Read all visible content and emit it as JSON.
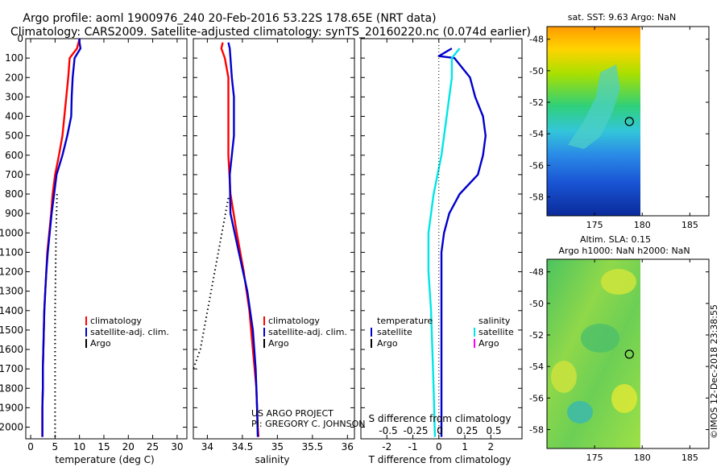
{
  "titles": {
    "line1": "Argo profile: aoml 1900976_240 20-Feb-2016 53.22S 178.65E (NRT data)",
    "line2": "Climatology: CARS2009. Satellite-adjusted climatology: synTS_20160220.nc (0.074d earlier)"
  },
  "credits": {
    "project": "US ARGO PROJECT",
    "pi": "PI: GREGORY C. JOHNSON",
    "imos": "©IMOS 12-Dec-2018 23:38:55"
  },
  "colors": {
    "climatology": "#ff0000",
    "satellite": "#0000cc",
    "argo": "#000000",
    "salinity_sat": "#00e5e5",
    "salinity_argo": "#ff00ff"
  },
  "chart_data": [
    {
      "type": "line",
      "panel": "temperature",
      "xlabel": "temperature (deg C)",
      "xlim": [
        -1,
        32
      ],
      "xticks": [
        0,
        5,
        10,
        15,
        20,
        25,
        30
      ],
      "ylim": [
        2060,
        0
      ],
      "yticks": [
        0,
        100,
        200,
        300,
        400,
        500,
        600,
        700,
        800,
        900,
        1000,
        1100,
        1200,
        1300,
        1400,
        1500,
        1600,
        1700,
        1800,
        1900,
        2000
      ],
      "y_inverted": true,
      "legend": {
        "placement": "lower-middle",
        "entries": [
          "climatology",
          "satellite-adj. clim.",
          "Argo"
        ]
      },
      "series": [
        {
          "name": "climatology",
          "color": "#ff0000",
          "points": [
            [
              10,
              0
            ],
            [
              9.8,
              20
            ],
            [
              9.5,
              50
            ],
            [
              8,
              100
            ],
            [
              7.7,
              200
            ],
            [
              7.3,
              300
            ],
            [
              6.9,
              400
            ],
            [
              6.5,
              500
            ],
            [
              5.8,
              600
            ],
            [
              5,
              700
            ],
            [
              4.5,
              800
            ],
            [
              4.2,
              900
            ],
            [
              3.8,
              1000
            ],
            [
              3.4,
              1100
            ],
            [
              3.2,
              1200
            ],
            [
              3,
              1300
            ],
            [
              2.8,
              1400
            ],
            [
              2.7,
              1500
            ],
            [
              2.6,
              1600
            ],
            [
              2.5,
              1700
            ],
            [
              2.5,
              1800
            ],
            [
              2.4,
              1900
            ],
            [
              2.4,
              2000
            ],
            [
              2.4,
              2050
            ]
          ]
        },
        {
          "name": "satellite-adj. clim.",
          "color": "#0000cc",
          "points": [
            [
              10,
              0
            ],
            [
              10,
              20
            ],
            [
              10.2,
              50
            ],
            [
              9,
              100
            ],
            [
              8.6,
              200
            ],
            [
              8.4,
              300
            ],
            [
              8.3,
              400
            ],
            [
              7.5,
              500
            ],
            [
              6.5,
              600
            ],
            [
              5.3,
              700
            ],
            [
              4.8,
              800
            ],
            [
              4.3,
              900
            ],
            [
              3.9,
              1000
            ],
            [
              3.5,
              1100
            ],
            [
              3.2,
              1200
            ],
            [
              3,
              1300
            ],
            [
              2.8,
              1400
            ],
            [
              2.7,
              1500
            ],
            [
              2.6,
              1600
            ],
            [
              2.5,
              1700
            ],
            [
              2.5,
              1800
            ],
            [
              2.4,
              1900
            ],
            [
              2.4,
              2000
            ],
            [
              2.4,
              2050
            ]
          ]
        },
        {
          "name": "Argo",
          "color": "#000000",
          "style": "dotted",
          "points": [
            [
              5.4,
              800
            ],
            [
              5.2,
              1000
            ],
            [
              5.1,
              1200
            ],
            [
              5.0,
              1400
            ],
            [
              5.0,
              1600
            ],
            [
              5.0,
              1800
            ],
            [
              5.0,
              2000
            ],
            [
              5.0,
              2050
            ]
          ]
        }
      ]
    },
    {
      "type": "line",
      "panel": "salinity",
      "xlabel": "salinity",
      "xlim": [
        33.8,
        36.1
      ],
      "xticks": [
        34,
        34.5,
        35,
        35.5,
        36
      ],
      "ylim": [
        2060,
        0
      ],
      "y_inverted": true,
      "legend": {
        "placement": "lower-right",
        "entries": [
          "climatology",
          "satellite-adj. clim.",
          "Argo"
        ]
      },
      "series": [
        {
          "name": "climatology",
          "color": "#ff0000",
          "points": [
            [
              34.22,
              20
            ],
            [
              34.2,
              50
            ],
            [
              34.25,
              100
            ],
            [
              34.3,
              200
            ],
            [
              34.3,
              400
            ],
            [
              34.3,
              600
            ],
            [
              34.33,
              800
            ],
            [
              34.42,
              1000
            ],
            [
              34.52,
              1200
            ],
            [
              34.6,
              1400
            ],
            [
              34.65,
              1600
            ],
            [
              34.7,
              1800
            ],
            [
              34.72,
              2000
            ],
            [
              34.73,
              2050
            ]
          ]
        },
        {
          "name": "satellite-adj. clim.",
          "color": "#0000cc",
          "points": [
            [
              34.3,
              20
            ],
            [
              34.32,
              50
            ],
            [
              34.33,
              100
            ],
            [
              34.35,
              200
            ],
            [
              34.38,
              300
            ],
            [
              34.38,
              500
            ],
            [
              34.32,
              700
            ],
            [
              34.33,
              900
            ],
            [
              34.45,
              1100
            ],
            [
              34.57,
              1300
            ],
            [
              34.65,
              1500
            ],
            [
              34.69,
              1700
            ],
            [
              34.71,
              1900
            ],
            [
              34.72,
              2050
            ]
          ]
        },
        {
          "name": "Argo",
          "color": "#000000",
          "style": "dotted",
          "points": [
            [
              34.3,
              820
            ],
            [
              33.9,
              1600
            ],
            [
              33.8,
              1700
            ]
          ]
        }
      ]
    },
    {
      "type": "line",
      "panel": "difference",
      "xlabel": "T difference from climatology",
      "xlabel_top": "S difference from climatology",
      "xlim": [
        -3,
        3.2
      ],
      "xticks": [
        -2,
        -1,
        0,
        1,
        2
      ],
      "s_xticks": [
        "-0.5",
        "-0.25",
        "0",
        "0.25",
        "0.5"
      ],
      "ylim": [
        2060,
        0
      ],
      "y_inverted": true,
      "legend": {
        "placement": "lower-middle",
        "left_heading": "temperature",
        "right_heading": "salinity",
        "left_entries": [
          "satellite",
          "Argo"
        ],
        "right_entries": [
          "satellite",
          "Argo"
        ]
      },
      "series": [
        {
          "name": "temperature satellite",
          "color": "#0000cc",
          "points": [
            [
              0.5,
              50
            ],
            [
              0,
              90
            ],
            [
              0.6,
              100
            ],
            [
              1.2,
              200
            ],
            [
              1.4,
              300
            ],
            [
              1.7,
              400
            ],
            [
              1.8,
              500
            ],
            [
              1.7,
              600
            ],
            [
              1.5,
              700
            ],
            [
              0.8,
              800
            ],
            [
              0.4,
              900
            ],
            [
              0.2,
              1000
            ],
            [
              0.1,
              1100
            ],
            [
              0.1,
              1200
            ],
            [
              0.1,
              1300
            ],
            [
              0.1,
              1400
            ],
            [
              0.1,
              1500
            ],
            [
              0.1,
              1600
            ],
            [
              0.1,
              1700
            ],
            [
              0.1,
              1800
            ],
            [
              0.1,
              1900
            ],
            [
              0.1,
              2050
            ]
          ]
        },
        {
          "name": "salinity satellite",
          "color": "#00e5e5",
          "points": [
            [
              0.8,
              50
            ],
            [
              0.5,
              100
            ],
            [
              0.5,
              200
            ],
            [
              0.3,
              400
            ],
            [
              0.1,
              600
            ],
            [
              -0.2,
              800
            ],
            [
              -0.4,
              1000
            ],
            [
              -0.4,
              1200
            ],
            [
              -0.3,
              1400
            ],
            [
              -0.25,
              1600
            ],
            [
              -0.2,
              1800
            ],
            [
              -0.15,
              2050
            ]
          ]
        }
      ]
    },
    {
      "type": "heatmap",
      "panel": "sst-map",
      "title": "sat. SST: 9.63 Argo: NaN",
      "xticks": [
        175,
        180,
        185
      ],
      "yticks": [
        -48,
        -50,
        -52,
        -54,
        -56,
        -58
      ],
      "xlim": [
        170,
        187
      ],
      "ylim": [
        -59.2,
        -47.2
      ],
      "marker": {
        "lon": 178.65,
        "lat": -53.22
      },
      "data_extent": {
        "lon": [
          170,
          180
        ],
        "lat": [
          -59.2,
          -47.2
        ]
      }
    },
    {
      "type": "heatmap",
      "panel": "sla-map",
      "title": "Altim. SLA: 0.15",
      "title2": "Argo h1000: NaN h2000: NaN",
      "xticks": [
        175,
        180,
        185
      ],
      "yticks": [
        -48,
        -50,
        -52,
        -54,
        -56,
        -58
      ],
      "xlim": [
        170,
        187
      ],
      "ylim": [
        -59.2,
        -47.2
      ],
      "marker": {
        "lon": 178.65,
        "lat": -53.22
      },
      "data_extent": {
        "lon": [
          170,
          180
        ],
        "lat": [
          -59.2,
          -47.2
        ]
      }
    }
  ]
}
